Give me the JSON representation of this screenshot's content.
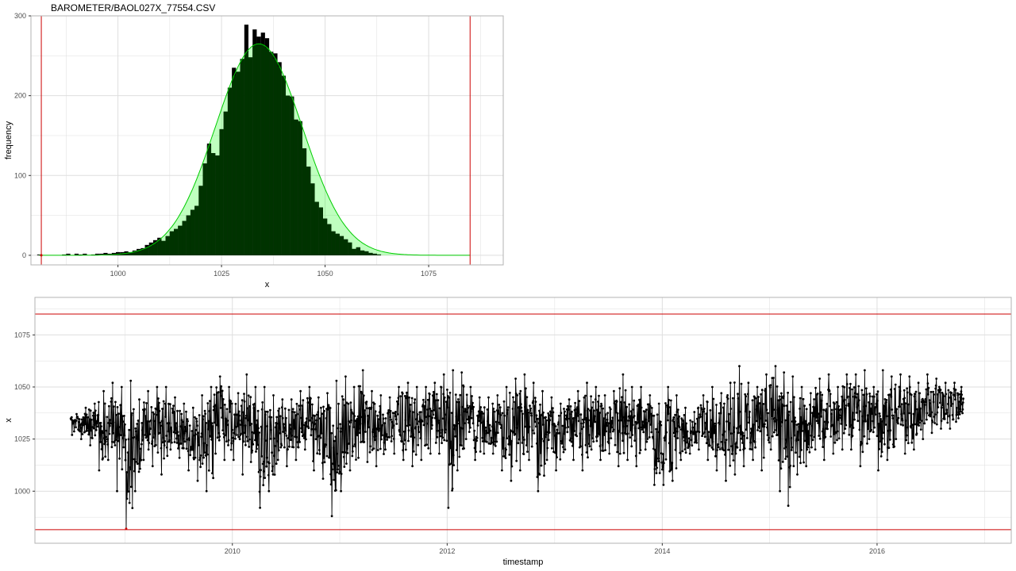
{
  "title": "BAROMETER/BAOL027X_77554.CSV",
  "colors": {
    "background": "#ffffff",
    "panel_border": "#b3b3b3",
    "grid": "#dedede",
    "bars": "#000000",
    "density_fill": "#00ff00",
    "density_dark": "#003300",
    "density_line": "#00cc00",
    "threshold": "#cc0000",
    "series": "#000000"
  },
  "chart_data": [
    {
      "type": "bar",
      "xlabel": "x",
      "ylabel": "frequency",
      "xlim": [
        979,
        1093
      ],
      "ylim": [
        -12,
        300
      ],
      "x_ticks": [
        1000,
        1025,
        1050,
        1075
      ],
      "x_tick_labels": [
        "1000",
        "1025",
        "1050",
        "1075"
      ],
      "y_ticks": [
        0,
        100,
        200,
        300
      ],
      "y_tick_labels": [
        "0",
        "100",
        "200",
        "300"
      ],
      "grid": true,
      "thresholds_x": [
        981.5,
        1085
      ],
      "bin_width": 1,
      "bins": [
        {
          "x": 981,
          "y": 1
        },
        {
          "x": 987,
          "y": 1
        },
        {
          "x": 988,
          "y": 2
        },
        {
          "x": 990,
          "y": 2
        },
        {
          "x": 991,
          "y": 1
        },
        {
          "x": 992,
          "y": 2
        },
        {
          "x": 994,
          "y": 1
        },
        {
          "x": 995,
          "y": 2
        },
        {
          "x": 996,
          "y": 2
        },
        {
          "x": 997,
          "y": 3
        },
        {
          "x": 998,
          "y": 2
        },
        {
          "x": 999,
          "y": 3
        },
        {
          "x": 1000,
          "y": 4
        },
        {
          "x": 1001,
          "y": 4
        },
        {
          "x": 1002,
          "y": 5
        },
        {
          "x": 1003,
          "y": 4
        },
        {
          "x": 1004,
          "y": 6
        },
        {
          "x": 1005,
          "y": 8
        },
        {
          "x": 1006,
          "y": 9
        },
        {
          "x": 1007,
          "y": 13
        },
        {
          "x": 1008,
          "y": 16
        },
        {
          "x": 1009,
          "y": 19
        },
        {
          "x": 1010,
          "y": 22
        },
        {
          "x": 1011,
          "y": 18
        },
        {
          "x": 1012,
          "y": 24
        },
        {
          "x": 1013,
          "y": 30
        },
        {
          "x": 1014,
          "y": 33
        },
        {
          "x": 1015,
          "y": 37
        },
        {
          "x": 1016,
          "y": 43
        },
        {
          "x": 1017,
          "y": 50
        },
        {
          "x": 1018,
          "y": 57
        },
        {
          "x": 1019,
          "y": 62
        },
        {
          "x": 1020,
          "y": 87
        },
        {
          "x": 1021,
          "y": 115
        },
        {
          "x": 1022,
          "y": 140
        },
        {
          "x": 1023,
          "y": 128
        },
        {
          "x": 1024,
          "y": 125
        },
        {
          "x": 1025,
          "y": 158
        },
        {
          "x": 1026,
          "y": 180
        },
        {
          "x": 1027,
          "y": 210
        },
        {
          "x": 1028,
          "y": 235
        },
        {
          "x": 1029,
          "y": 230
        },
        {
          "x": 1030,
          "y": 246
        },
        {
          "x": 1031,
          "y": 289
        },
        {
          "x": 1032,
          "y": 248
        },
        {
          "x": 1033,
          "y": 283
        },
        {
          "x": 1034,
          "y": 274
        },
        {
          "x": 1035,
          "y": 279
        },
        {
          "x": 1036,
          "y": 272
        },
        {
          "x": 1037,
          "y": 255
        },
        {
          "x": 1038,
          "y": 253
        },
        {
          "x": 1039,
          "y": 242
        },
        {
          "x": 1040,
          "y": 225
        },
        {
          "x": 1041,
          "y": 200
        },
        {
          "x": 1042,
          "y": 199
        },
        {
          "x": 1043,
          "y": 170
        },
        {
          "x": 1044,
          "y": 168
        },
        {
          "x": 1045,
          "y": 134
        },
        {
          "x": 1046,
          "y": 111
        },
        {
          "x": 1047,
          "y": 90
        },
        {
          "x": 1048,
          "y": 67
        },
        {
          "x": 1049,
          "y": 60
        },
        {
          "x": 1050,
          "y": 46
        },
        {
          "x": 1051,
          "y": 39
        },
        {
          "x": 1052,
          "y": 30
        },
        {
          "x": 1053,
          "y": 27
        },
        {
          "x": 1054,
          "y": 24
        },
        {
          "x": 1055,
          "y": 20
        },
        {
          "x": 1056,
          "y": 16
        },
        {
          "x": 1057,
          "y": 8
        },
        {
          "x": 1058,
          "y": 10
        },
        {
          "x": 1059,
          "y": 6
        },
        {
          "x": 1060,
          "y": 5
        },
        {
          "x": 1061,
          "y": 3
        },
        {
          "x": 1062,
          "y": 2
        },
        {
          "x": 1063,
          "y": 1
        }
      ],
      "density": {
        "mean": 1034,
        "sd": 10.5,
        "peak": 265
      }
    },
    {
      "type": "line",
      "xlabel": "timestamp",
      "ylabel": "x",
      "xlim": [
        "2008-03-01",
        "2017-04-01"
      ],
      "ylim": [
        975,
        1093
      ],
      "x_ticks": [
        "2010-01-01",
        "2012-01-01",
        "2014-01-01",
        "2016-01-01"
      ],
      "x_tick_labels": [
        "2010",
        "2012",
        "2014",
        "2016"
      ],
      "y_ticks": [
        1000,
        1025,
        1050,
        1075
      ],
      "y_tick_labels": [
        "1000",
        "1025",
        "1050",
        "1075"
      ],
      "grid": true,
      "markers": true,
      "thresholds_y": [
        981.5,
        1085
      ],
      "series": [
        {
          "x": [
            "2008-07-01",
            "2008-08-01",
            "2008-09-01",
            "2008-10-01",
            "2008-11-01",
            "2008-12-01",
            "2009-01-01",
            "2009-02-01",
            "2009-03-01",
            "2009-04-01",
            "2009-05-01",
            "2009-06-01",
            "2009-07-01",
            "2009-08-01",
            "2009-09-01",
            "2009-10-01",
            "2009-11-01",
            "2009-12-01",
            "2010-01-01",
            "2010-02-01",
            "2010-03-01",
            "2010-04-01",
            "2010-05-01",
            "2010-06-01",
            "2010-07-01",
            "2010-08-01",
            "2010-09-01",
            "2010-10-01",
            "2010-11-01",
            "2010-12-01",
            "2011-01-01",
            "2011-02-01",
            "2011-03-01",
            "2011-04-01",
            "2011-05-01",
            "2011-06-01",
            "2011-07-01",
            "2011-08-01",
            "2011-09-01",
            "2011-10-01",
            "2011-11-01",
            "2011-12-01",
            "2012-01-01",
            "2012-02-01",
            "2012-03-01",
            "2012-04-01",
            "2012-05-01",
            "2012-06-01",
            "2012-07-01",
            "2012-08-01",
            "2012-09-01",
            "2012-10-01",
            "2012-11-01",
            "2012-12-01",
            "2013-01-01",
            "2013-02-01",
            "2013-03-01",
            "2013-04-01",
            "2013-05-01",
            "2013-06-01",
            "2013-07-01",
            "2013-08-01",
            "2013-09-01",
            "2013-10-01",
            "2013-11-01",
            "2013-12-01",
            "2014-01-01",
            "2014-02-01",
            "2014-03-01",
            "2014-04-01",
            "2014-05-01",
            "2014-06-01",
            "2014-07-01",
            "2014-08-01",
            "2014-09-01",
            "2014-10-01",
            "2014-11-01",
            "2014-12-01",
            "2015-01-01",
            "2015-02-01",
            "2015-03-01",
            "2015-04-01",
            "2015-05-01",
            "2015-06-01",
            "2015-07-01",
            "2015-08-01",
            "2015-09-01",
            "2015-10-01",
            "2015-11-01",
            "2015-12-01",
            "2016-01-01",
            "2016-02-01",
            "2016-03-01",
            "2016-04-01",
            "2016-05-01",
            "2016-06-01",
            "2016-07-01",
            "2016-08-01",
            "2016-09-01",
            "2016-10-01"
          ],
          "min": [
            1027,
            1025,
            1022,
            1010,
            1015,
            1000,
            982,
            1000,
            1015,
            1012,
            1008,
            1020,
            1016,
            1010,
            1005,
            1000,
            1018,
            1015,
            1015,
            1008,
            1014,
            992,
            1000,
            1015,
            1012,
            1015,
            1020,
            1010,
            1006,
            988,
            1000,
            1010,
            1016,
            1014,
            1012,
            1020,
            1018,
            1015,
            1012,
            1015,
            1018,
            1018,
            992,
            1010,
            1025,
            1015,
            1018,
            1018,
            1010,
            1005,
            1010,
            1015,
            1000,
            1015,
            1010,
            1020,
            1015,
            1010,
            1020,
            1015,
            1018,
            1012,
            1015,
            1012,
            1020,
            1003,
            1003,
            1005,
            1015,
            1018,
            1020,
            1015,
            1010,
            1005,
            1008,
            1012,
            1015,
            1010,
            1020,
            1000,
            993,
            1008,
            1012,
            1020,
            1015,
            1018,
            1020,
            1020,
            1012,
            1025,
            1010,
            1015,
            1025,
            1018,
            1020,
            1025,
            1028,
            1030,
            1030,
            1035
          ],
          "max": [
            1037,
            1040,
            1042,
            1048,
            1052,
            1050,
            1053,
            1044,
            1048,
            1050,
            1050,
            1045,
            1042,
            1040,
            1046,
            1050,
            1055,
            1050,
            1047,
            1056,
            1050,
            1050,
            1046,
            1044,
            1044,
            1048,
            1050,
            1045,
            1047,
            1053,
            1055,
            1050,
            1058,
            1048,
            1046,
            1045,
            1050,
            1052,
            1050,
            1050,
            1052,
            1056,
            1058,
            1057,
            1050,
            1045,
            1045,
            1046,
            1050,
            1054,
            1056,
            1052,
            1048,
            1045,
            1042,
            1044,
            1048,
            1052,
            1050,
            1046,
            1048,
            1056,
            1050,
            1050,
            1046,
            1042,
            1050,
            1046,
            1040,
            1038,
            1046,
            1050,
            1047,
            1052,
            1060,
            1052,
            1050,
            1056,
            1060,
            1057,
            1055,
            1050,
            1047,
            1054,
            1056,
            1050,
            1056,
            1056,
            1058,
            1050,
            1058,
            1055,
            1056,
            1055,
            1052,
            1056,
            1054,
            1052,
            1052,
            1050
          ]
        }
      ]
    }
  ]
}
